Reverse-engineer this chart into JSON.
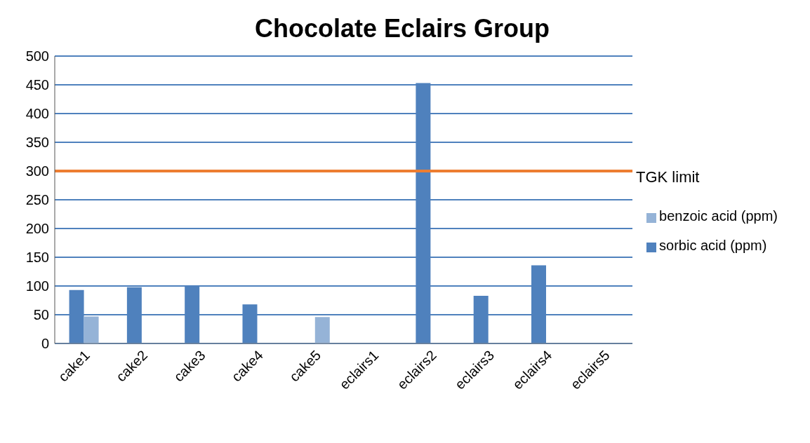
{
  "chart_data": {
    "type": "bar",
    "title": "Chocolate Eclairs Group",
    "categories": [
      "cake1",
      "cake2",
      "cake3",
      "cake4",
      "cake5",
      "eclairs1",
      "eclairs2",
      "eclairs3",
      "eclairs4",
      "eclairs5"
    ],
    "series": [
      {
        "name": "sorbic acid (ppm)",
        "color": "#4f81bd",
        "values": [
          93,
          98,
          100,
          68,
          0,
          0,
          453,
          83,
          136,
          0
        ]
      },
      {
        "name": "benzoic acid (ppm)",
        "color": "#95b3d7",
        "values": [
          47,
          0,
          0,
          0,
          46,
          0,
          0,
          0,
          0,
          0
        ]
      }
    ],
    "ylim": [
      0,
      500
    ],
    "yticks": [
      0,
      50,
      100,
      150,
      200,
      250,
      300,
      350,
      400,
      450,
      500
    ],
    "grid": "y",
    "legend": "right",
    "ref_lines": [
      {
        "axis": "y",
        "value": 300,
        "label": "TGK limit",
        "color": "#ed7d31"
      }
    ]
  }
}
